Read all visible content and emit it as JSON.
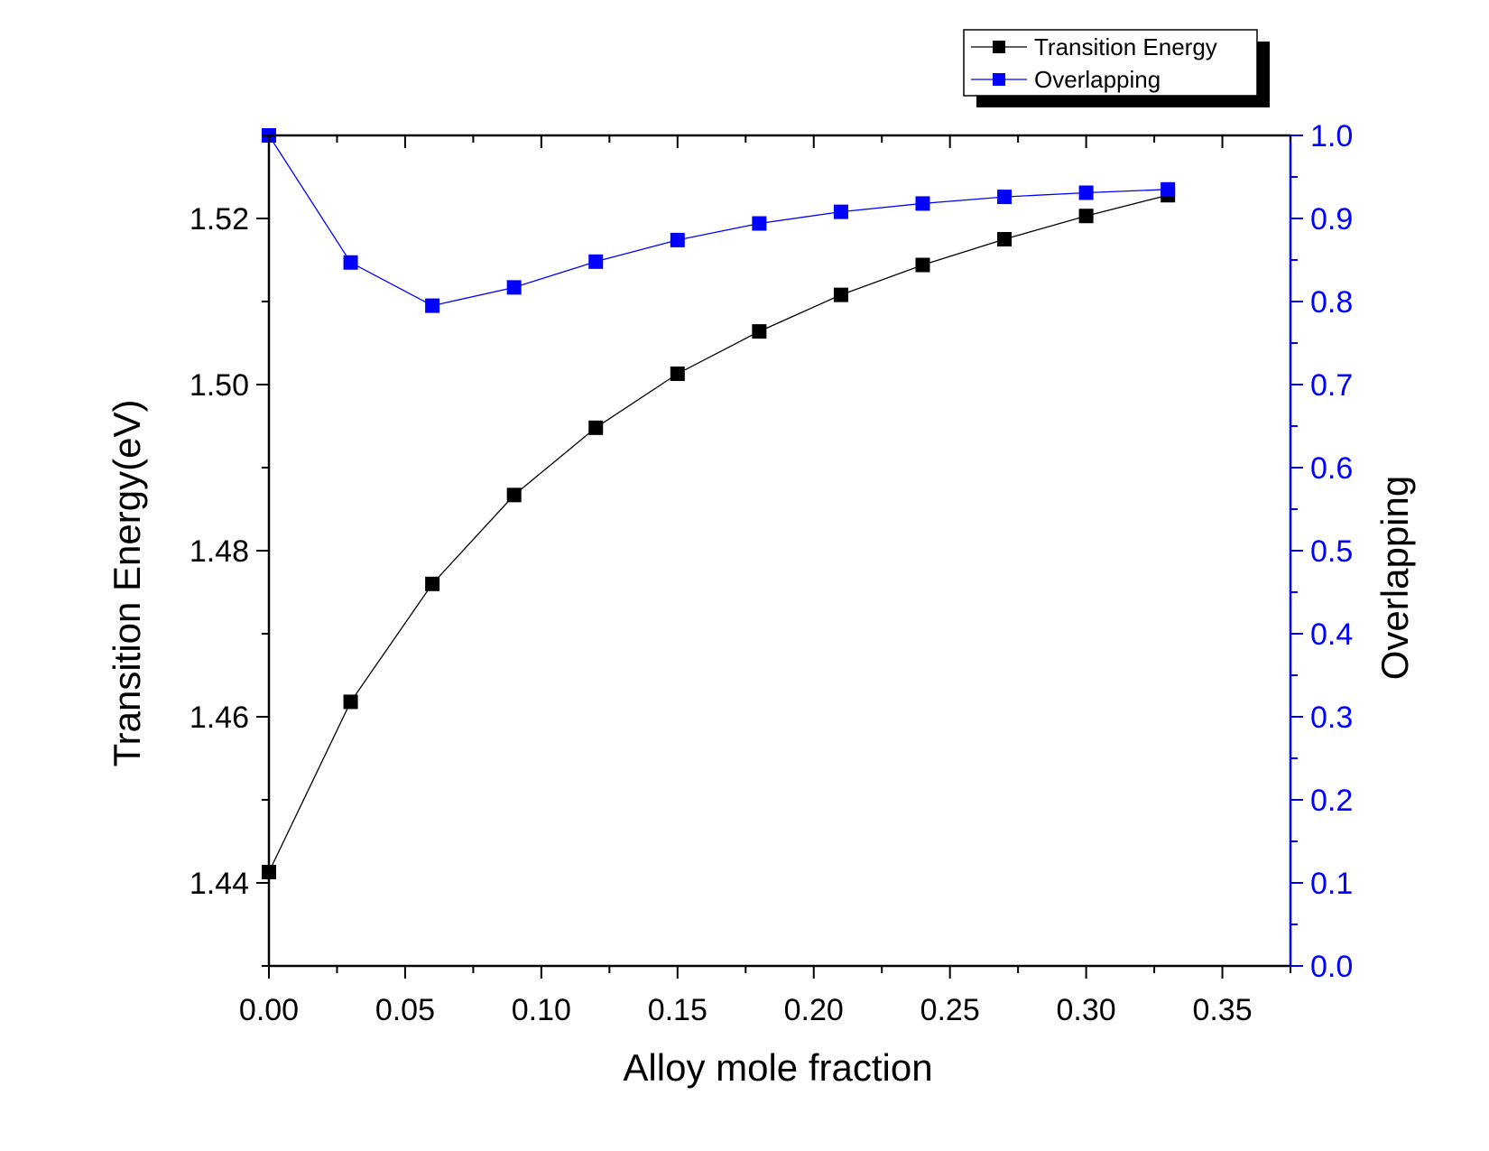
{
  "chart_data": {
    "type": "line",
    "xlabel": "Alloy mole fraction",
    "ylabel_left": "Transition Energy(eV)",
    "ylabel_right": "Overlapping",
    "x": [
      0.0,
      0.03,
      0.06,
      0.09,
      0.12,
      0.15,
      0.18,
      0.21,
      0.24,
      0.27,
      0.3,
      0.33
    ],
    "xlim": [
      0.0,
      0.375
    ],
    "xticks": [
      "0.00",
      "0.05",
      "0.10",
      "0.15",
      "0.20",
      "0.25",
      "0.30",
      "0.35"
    ],
    "ylim_left": [
      1.43,
      1.53
    ],
    "yticks_left": [
      "1.44",
      "1.46",
      "1.48",
      "1.50",
      "1.52"
    ],
    "ylim_right": [
      0.0,
      1.0
    ],
    "yticks_right": [
      "0.0",
      "0.1",
      "0.2",
      "0.3",
      "0.4",
      "0.5",
      "0.6",
      "0.7",
      "0.8",
      "0.9",
      "1.0"
    ],
    "series": [
      {
        "name": "Transition Energy",
        "axis": "left",
        "color": "#000000",
        "values": [
          1.4413,
          1.4618,
          1.476,
          1.4867,
          1.4948,
          1.5013,
          1.5064,
          1.5108,
          1.5144,
          1.5175,
          1.5203,
          1.5228
        ]
      },
      {
        "name": "Overlapping",
        "axis": "right",
        "color": "#0000ff",
        "values": [
          1.0,
          0.847,
          0.795,
          0.817,
          0.848,
          0.874,
          0.894,
          0.908,
          0.918,
          0.926,
          0.931,
          0.935
        ]
      }
    ],
    "legend_position": "top-right",
    "grid": false
  }
}
